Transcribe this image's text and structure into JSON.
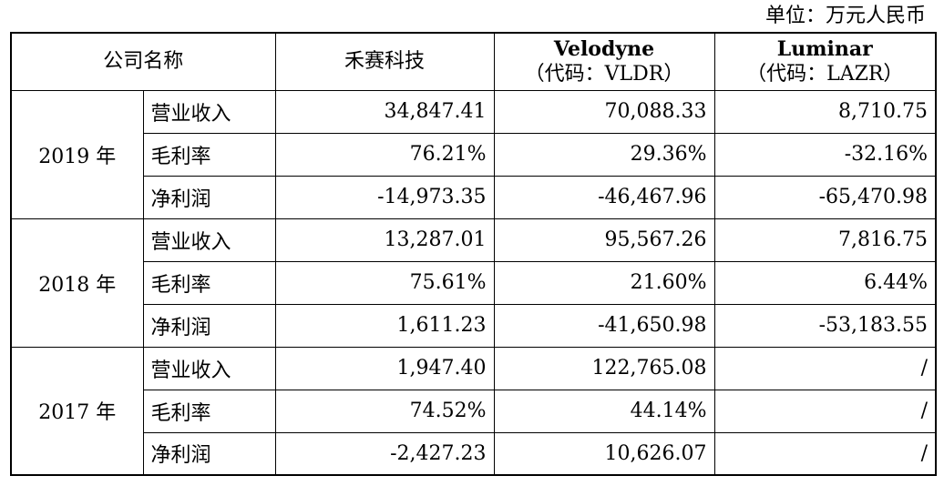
{
  "unit_label": "单位：万元人民币",
  "header": {
    "company_col": "公司名称",
    "companies": [
      {
        "name": "禾赛科技",
        "code": ""
      },
      {
        "name": "Velodyne",
        "code": "（代码：VLDR）"
      },
      {
        "name": "Luminar",
        "code": "（代码：LAZR）"
      }
    ]
  },
  "years": [
    {
      "year": "2019 年",
      "rows": [
        {
          "metric": "营业收入",
          "values": [
            "34,847.41",
            "70,088.33",
            "8,710.75"
          ]
        },
        {
          "metric": "毛利率",
          "values": [
            "76.21%",
            "29.36%",
            "-32.16%"
          ]
        },
        {
          "metric": "净利润",
          "values": [
            "-14,973.35",
            "-46,467.96",
            "-65,470.98"
          ]
        }
      ]
    },
    {
      "year": "2018 年",
      "rows": [
        {
          "metric": "营业收入",
          "values": [
            "13,287.01",
            "95,567.26",
            "7,816.75"
          ]
        },
        {
          "metric": "毛利率",
          "values": [
            "75.61%",
            "21.60%",
            "6.44%"
          ]
        },
        {
          "metric": "净利润",
          "values": [
            "1,611.23",
            "-41,650.98",
            "-53,183.55"
          ]
        }
      ]
    },
    {
      "year": "2017 年",
      "rows": [
        {
          "metric": "营业收入",
          "values": [
            "1,947.40",
            "122,765.08",
            "/"
          ]
        },
        {
          "metric": "毛利率",
          "values": [
            "74.52%",
            "44.14%",
            "/"
          ]
        },
        {
          "metric": "净利润",
          "values": [
            "-2,427.23",
            "10,626.07",
            "/"
          ]
        }
      ]
    }
  ]
}
